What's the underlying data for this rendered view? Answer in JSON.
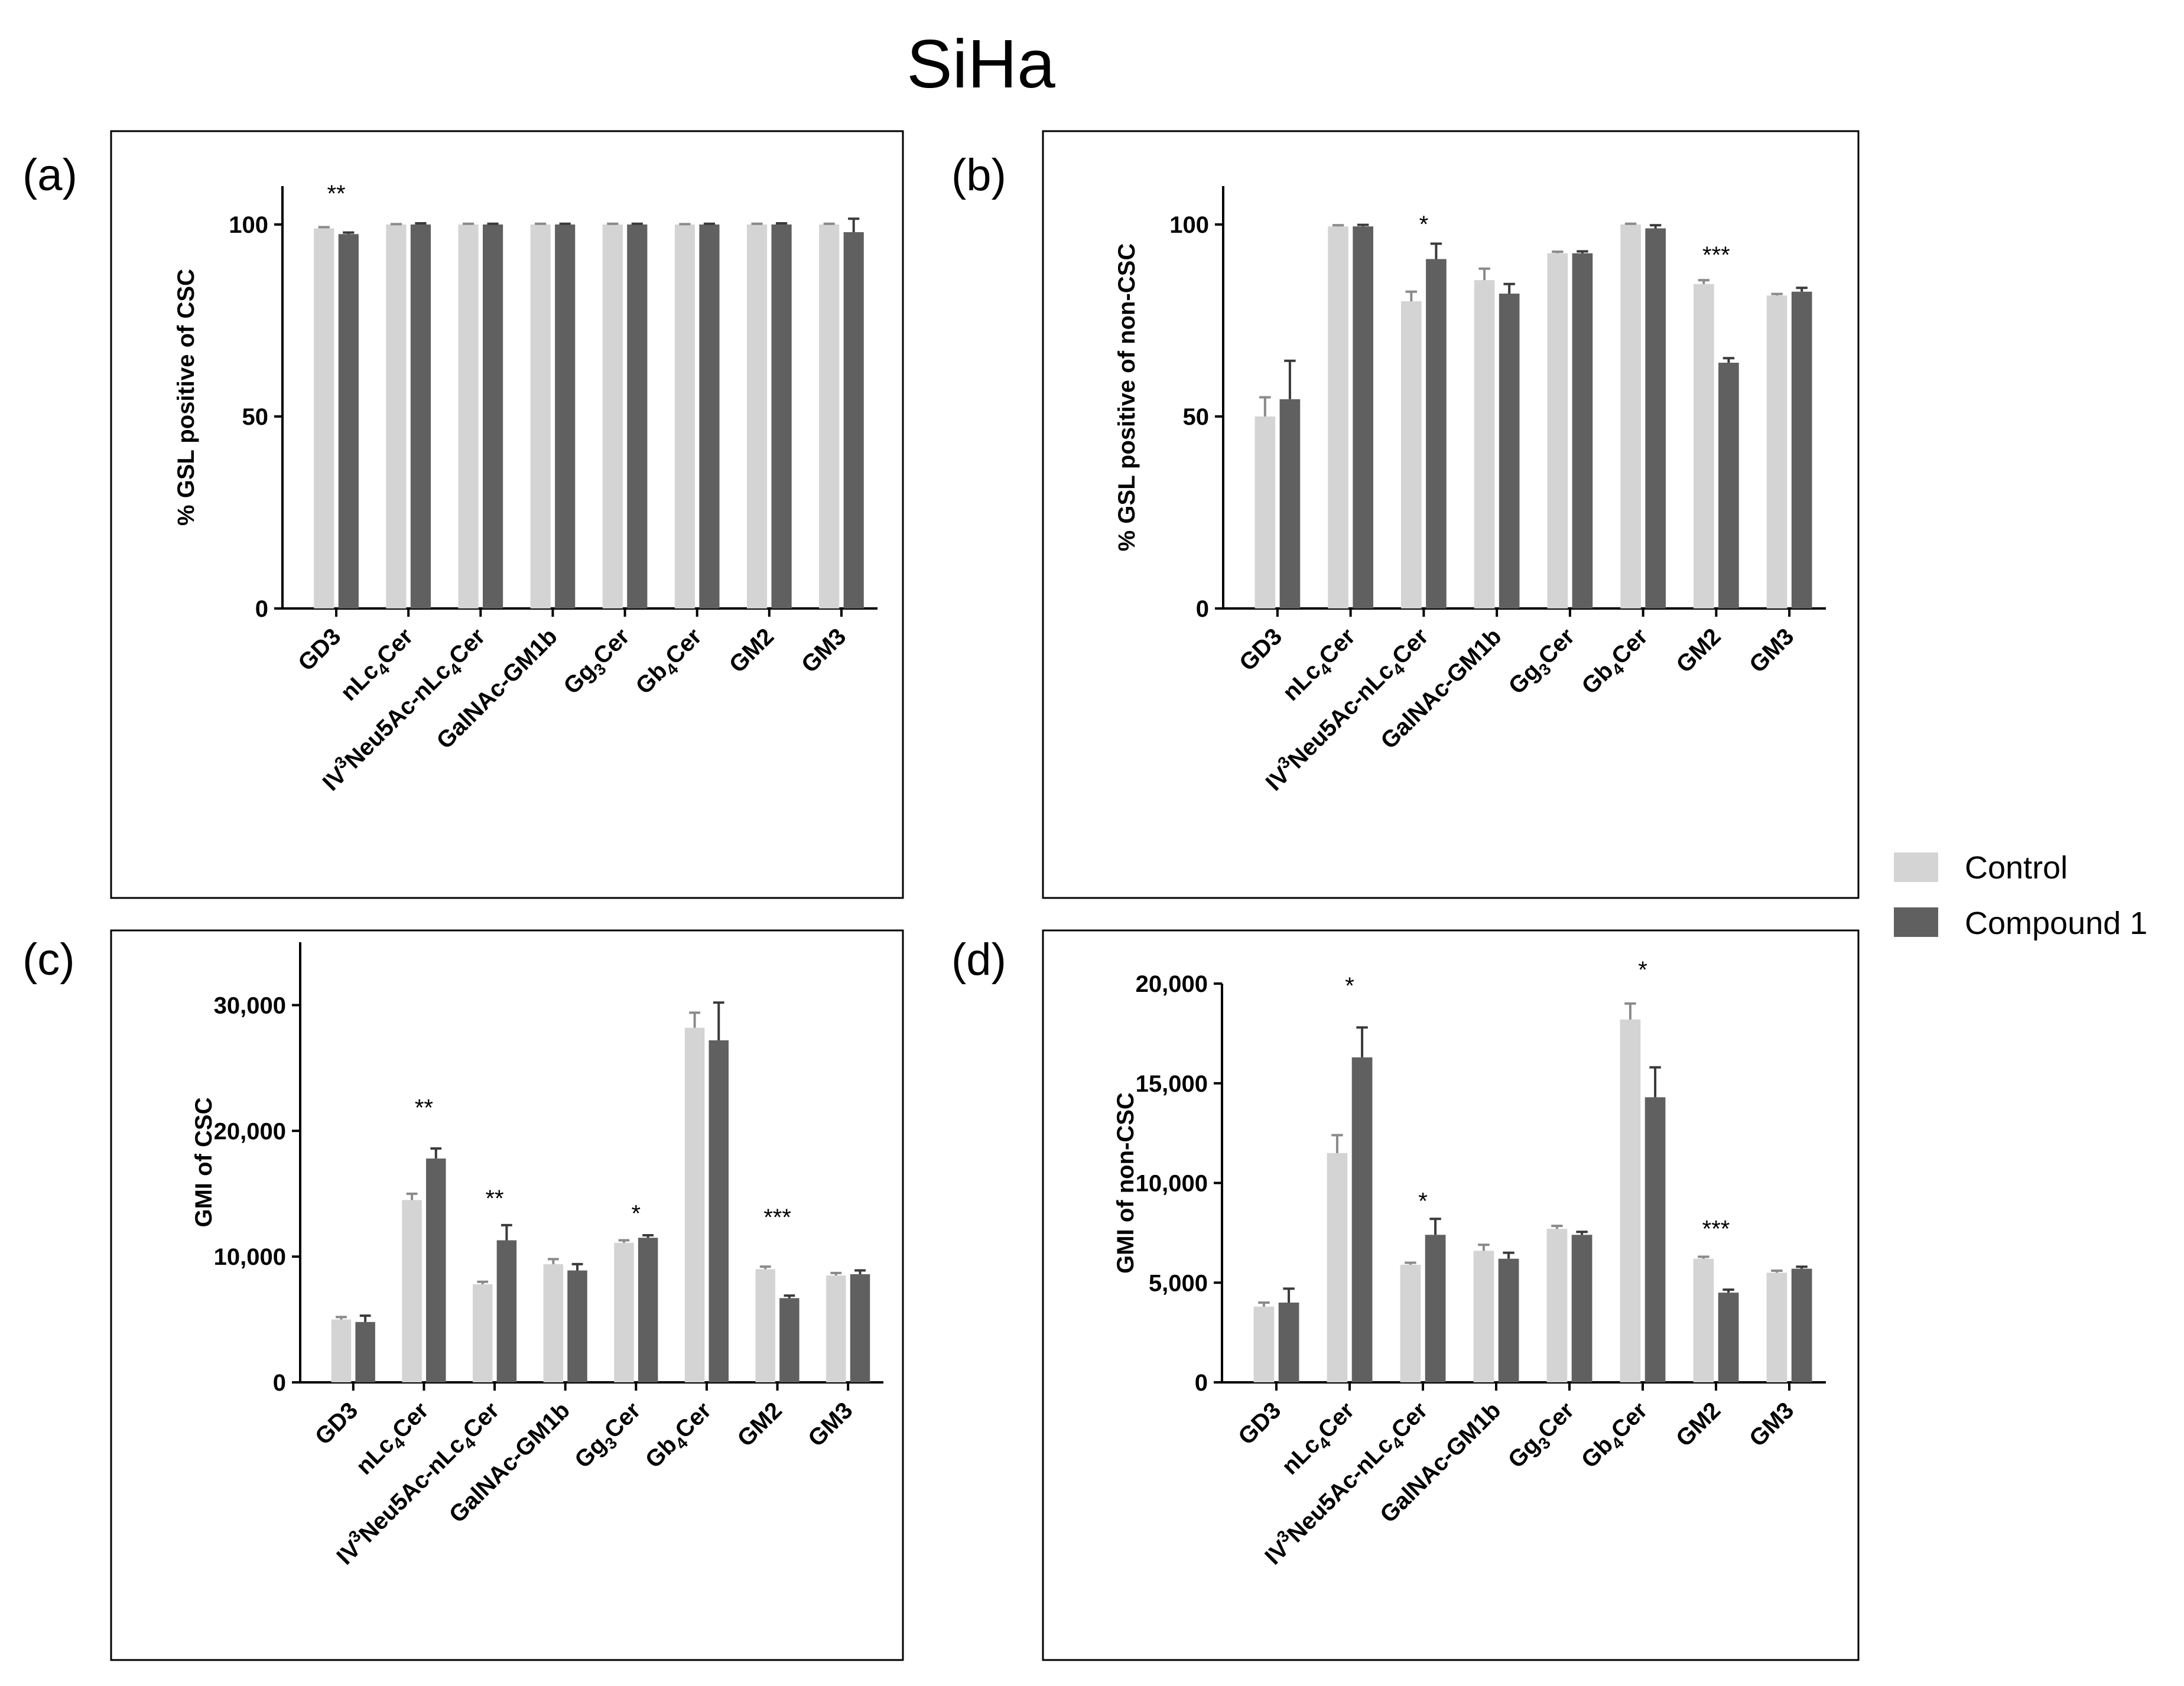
{
  "figure_title": "SiHa",
  "legend": [
    {
      "label": "Control",
      "color": "#d4d4d4"
    },
    {
      "label": "Compound 1",
      "color": "#606060"
    }
  ],
  "colors": {
    "control": "#d4d4d4",
    "compound": "#606060",
    "axis": "#000000",
    "frame": "#000000"
  },
  "chart_data": [
    {
      "panel": "(a)",
      "type": "bar",
      "ylabel": "% GSL positive of CSC",
      "ylim": [
        0,
        110
      ],
      "yticks": [
        0,
        50,
        100
      ],
      "ytick_labels": [
        "0",
        "50",
        "100"
      ],
      "categories": [
        {
          "base": "GD3",
          "sub": "",
          "rest": "",
          "sup": "",
          "pre": ""
        },
        {
          "base": "nLc",
          "sub": "4",
          "rest": "Cer",
          "sup": "",
          "pre": ""
        },
        {
          "pre": "IV",
          "sup": "3",
          "base": "Neu5Ac-nLc",
          "sub": "4",
          "rest": "Cer"
        },
        {
          "base": "GalNAc-GM1b",
          "sub": "",
          "rest": "",
          "sup": "",
          "pre": ""
        },
        {
          "base": "Gg",
          "sub": "3",
          "rest": "Cer",
          "sup": "",
          "pre": ""
        },
        {
          "base": "Gb",
          "sub": "4",
          "rest": "Cer",
          "sup": "",
          "pre": ""
        },
        {
          "base": "GM2",
          "sub": "",
          "rest": "",
          "sup": "",
          "pre": ""
        },
        {
          "base": "GM3",
          "sub": "",
          "rest": "",
          "sup": "",
          "pre": ""
        }
      ],
      "series": [
        {
          "name": "Control",
          "values": [
            99,
            100,
            100,
            100,
            100,
            100,
            100,
            100
          ],
          "errors": [
            0.3,
            0.1,
            0.2,
            0.2,
            0.2,
            0.1,
            0.2,
            0.2
          ]
        },
        {
          "name": "Compound 1",
          "values": [
            97.5,
            100,
            100,
            100,
            100,
            100,
            100,
            98
          ],
          "errors": [
            0.4,
            0.3,
            0.2,
            0.2,
            0.2,
            0.2,
            0.3,
            3.5
          ]
        }
      ],
      "significance": [
        {
          "index": 0,
          "label": "**",
          "value": 106
        }
      ]
    },
    {
      "panel": "(b)",
      "type": "bar",
      "ylabel": "% GSL positive of non-CSC",
      "ylim": [
        0,
        110
      ],
      "yticks": [
        0,
        50,
        100
      ],
      "ytick_labels": [
        "0",
        "50",
        "100"
      ],
      "categories": [
        {
          "base": "GD3",
          "sub": "",
          "rest": "",
          "sup": "",
          "pre": ""
        },
        {
          "base": "nLc",
          "sub": "4",
          "rest": "Cer",
          "sup": "",
          "pre": ""
        },
        {
          "pre": "IV",
          "sup": "3",
          "base": "Neu5Ac-nLc",
          "sub": "4",
          "rest": "Cer"
        },
        {
          "base": "GalNAc-GM1b",
          "sub": "",
          "rest": "",
          "sup": "",
          "pre": ""
        },
        {
          "base": "Gg",
          "sub": "3",
          "rest": "Cer",
          "sup": "",
          "pre": ""
        },
        {
          "base": "Gb",
          "sub": "4",
          "rest": "Cer",
          "sup": "",
          "pre": ""
        },
        {
          "base": "GM2",
          "sub": "",
          "rest": "",
          "sup": "",
          "pre": ""
        },
        {
          "base": "GM3",
          "sub": "",
          "rest": "",
          "sup": "",
          "pre": ""
        }
      ],
      "series": [
        {
          "name": "Control",
          "values": [
            50,
            99.5,
            80,
            85.5,
            92.5,
            100,
            84.5,
            81.5
          ],
          "errors": [
            5,
            0.3,
            2.5,
            3,
            0.4,
            0.2,
            1,
            0.4
          ]
        },
        {
          "name": "Compound 1",
          "values": [
            54.5,
            99.5,
            91,
            82,
            92.5,
            99,
            64,
            82.5
          ],
          "errors": [
            10,
            0.4,
            4,
            2.5,
            0.5,
            0.8,
            1.2,
            1
          ]
        }
      ],
      "significance": [
        {
          "index": 2,
          "label": "*",
          "value": 98
        },
        {
          "index": 6,
          "label": "***",
          "value": 90
        }
      ]
    },
    {
      "panel": "(c)",
      "type": "bar",
      "ylabel": "GMI of CSC",
      "ylim": [
        0,
        35000
      ],
      "yticks": [
        0,
        10000,
        20000,
        30000
      ],
      "ytick_labels": [
        "0",
        "10,000",
        "20,000",
        "30,000"
      ],
      "categories": [
        {
          "base": "GD3",
          "sub": "",
          "rest": "",
          "sup": "",
          "pre": ""
        },
        {
          "base": "nLc",
          "sub": "4",
          "rest": "Cer",
          "sup": "",
          "pre": ""
        },
        {
          "pre": "IV",
          "sup": "3",
          "base": "Neu5Ac-nLc",
          "sub": "4",
          "rest": "Cer"
        },
        {
          "base": "GalNAc-GM1b",
          "sub": "",
          "rest": "",
          "sup": "",
          "pre": ""
        },
        {
          "base": "Gg",
          "sub": "3",
          "rest": "Cer",
          "sup": "",
          "pre": ""
        },
        {
          "base": "Gb",
          "sub": "4",
          "rest": "Cer",
          "sup": "",
          "pre": ""
        },
        {
          "base": "GM2",
          "sub": "",
          "rest": "",
          "sup": "",
          "pre": ""
        },
        {
          "base": "GM3",
          "sub": "",
          "rest": "",
          "sup": "",
          "pre": ""
        }
      ],
      "series": [
        {
          "name": "Control",
          "values": [
            5000,
            14500,
            7800,
            9400,
            11100,
            28200,
            9000,
            8500
          ],
          "errors": [
            200,
            500,
            200,
            400,
            200,
            1200,
            200,
            200
          ]
        },
        {
          "name": "Compound 1",
          "values": [
            4800,
            17800,
            11300,
            8900,
            11500,
            27200,
            6700,
            8600
          ],
          "errors": [
            500,
            800,
            1200,
            500,
            200,
            3000,
            200,
            300
          ]
        }
      ],
      "significance": [
        {
          "index": 1,
          "label": "**",
          "value": 21200
        },
        {
          "index": 2,
          "label": "**",
          "value": 14000
        },
        {
          "index": 4,
          "label": "*",
          "value": 12800
        },
        {
          "index": 6,
          "label": "***",
          "value": 12500
        }
      ]
    },
    {
      "panel": "(d)",
      "type": "bar",
      "ylabel": "GMI of non-CSC",
      "ylim": [
        0,
        20000
      ],
      "yticks": [
        0,
        5000,
        10000,
        15000,
        20000
      ],
      "ytick_labels": [
        "0",
        "5,000",
        "10,000",
        "15,000",
        "20,000"
      ],
      "categories": [
        {
          "base": "GD3",
          "sub": "",
          "rest": "",
          "sup": "",
          "pre": ""
        },
        {
          "base": "nLc",
          "sub": "4",
          "rest": "Cer",
          "sup": "",
          "pre": ""
        },
        {
          "pre": "IV",
          "sup": "3",
          "base": "Neu5Ac-nLc",
          "sub": "4",
          "rest": "Cer"
        },
        {
          "base": "GalNAc-GM1b",
          "sub": "",
          "rest": "",
          "sup": "",
          "pre": ""
        },
        {
          "base": "Gg",
          "sub": "3",
          "rest": "Cer",
          "sup": "",
          "pre": ""
        },
        {
          "base": "Gb",
          "sub": "4",
          "rest": "Cer",
          "sup": "",
          "pre": ""
        },
        {
          "base": "GM2",
          "sub": "",
          "rest": "",
          "sup": "",
          "pre": ""
        },
        {
          "base": "GM3",
          "sub": "",
          "rest": "",
          "sup": "",
          "pre": ""
        }
      ],
      "series": [
        {
          "name": "Control",
          "values": [
            3800,
            11500,
            5900,
            6600,
            7700,
            18200,
            6200,
            5500
          ],
          "errors": [
            200,
            900,
            100,
            300,
            150,
            800,
            100,
            100
          ]
        },
        {
          "name": "Compound 1",
          "values": [
            4000,
            16300,
            7400,
            6200,
            7400,
            14300,
            4500,
            5700
          ],
          "errors": [
            700,
            1500,
            800,
            300,
            150,
            1500,
            150,
            100
          ]
        }
      ],
      "significance": [
        {
          "index": 1,
          "label": "*",
          "value": 19500
        },
        {
          "index": 2,
          "label": "*",
          "value": 8700
        },
        {
          "index": 5,
          "label": "*",
          "value": 20300
        },
        {
          "index": 6,
          "label": "***",
          "value": 7300
        }
      ]
    }
  ]
}
